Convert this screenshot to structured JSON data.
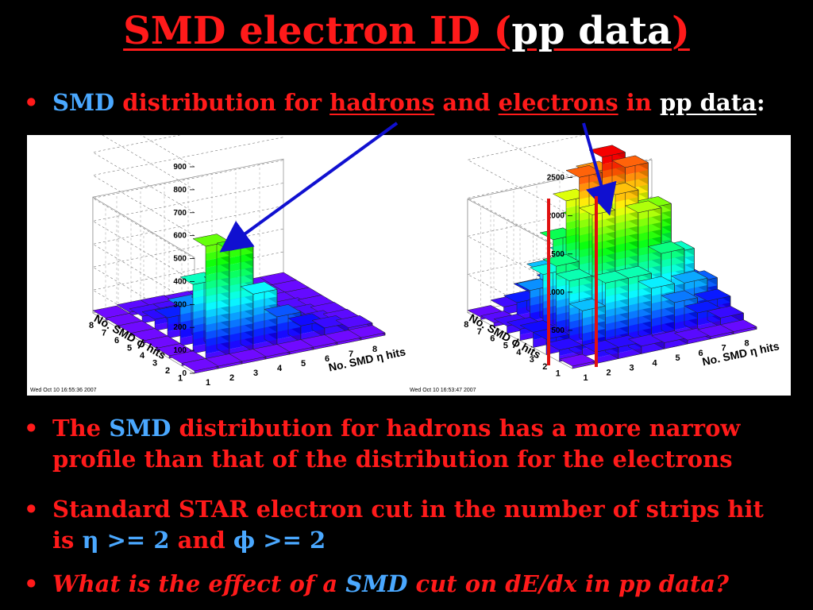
{
  "title": {
    "part1": "SMD electron ID (",
    "part2": "pp data",
    "part3": ")"
  },
  "bullet1": {
    "w1": "SMD",
    "w2": " distribution for ",
    "w3": "hadrons",
    "w4": " and ",
    "w5": "electrons",
    "w6": " in ",
    "w7": "pp data",
    "w8": ":"
  },
  "bullet2": {
    "line1_a": "The ",
    "line1_b": "SMD",
    "line1_c": " distribution for hadrons has a more narrow",
    "line2": "profile than that of the distribution for the electrons"
  },
  "bullet3": {
    "line1": "Standard STAR electron cut in the number of strips hit",
    "line2_a": "is ",
    "line2_b": "η >= 2",
    "line2_c": " and ",
    "line2_d": "ϕ >= 2"
  },
  "bullet4": {
    "a": "What is the effect of a ",
    "b": "SMD",
    "c": " cut on dE/dx in pp data?"
  },
  "bullet_glyph": "•",
  "colors": {
    "title_red": "#ff1a1a",
    "smd_blue": "#4aa8ff",
    "arrow_blue": "#1010d0",
    "cut_line_red": "#e01010"
  },
  "chart_data": [
    {
      "type": "lego3d",
      "name": "hadrons",
      "timestamp": "Wed Oct 10 16:55:36 2007",
      "xlabel": "No. SMD η hits",
      "ylabel": "No. SMD ϕ hits",
      "x_ticks": [
        "1",
        "2",
        "3",
        "4",
        "5",
        "6",
        "7",
        "8"
      ],
      "y_ticks": [
        "1",
        "2",
        "3",
        "4",
        "5",
        "6",
        "7",
        "8"
      ],
      "z_ticks": [
        "0",
        "100",
        "200",
        "300",
        "400",
        "500",
        "600",
        "700",
        "800",
        "900"
      ],
      "zlim": [
        0,
        900
      ],
      "values": [
        [
          0,
          0,
          0,
          0,
          0,
          0,
          0,
          0
        ],
        [
          0,
          500,
          460,
          250,
          130,
          70,
          40,
          20
        ],
        [
          0,
          300,
          280,
          160,
          90,
          50,
          30,
          15
        ],
        [
          0,
          170,
          160,
          110,
          70,
          40,
          25,
          12
        ],
        [
          0,
          90,
          90,
          70,
          50,
          30,
          20,
          10
        ],
        [
          0,
          50,
          50,
          40,
          30,
          20,
          12,
          8
        ],
        [
          0,
          30,
          30,
          25,
          20,
          12,
          8,
          5
        ],
        [
          0,
          15,
          15,
          12,
          10,
          8,
          5,
          3
        ]
      ]
    },
    {
      "type": "lego3d",
      "name": "electrons",
      "timestamp": "Wed Oct 10 16:53:47 2007",
      "xlabel": "No. SMD η hits",
      "ylabel": "No. SMD ϕ hits",
      "x_ticks": [
        "1",
        "2",
        "3",
        "4",
        "5",
        "6",
        "7",
        "8"
      ],
      "y_ticks": [
        "1",
        "2",
        "3",
        "4",
        "5",
        "6",
        "7",
        "8"
      ],
      "z_ticks": [
        "500",
        "1000",
        "1500",
        "2000",
        "2500"
      ],
      "zlim": [
        0,
        2600
      ],
      "values": [
        [
          0,
          150,
          150,
          100,
          80,
          50,
          30,
          20
        ],
        [
          150,
          600,
          900,
          900,
          700,
          450,
          250,
          120
        ],
        [
          200,
          900,
          1700,
          1900,
          1600,
          1000,
          550,
          250
        ],
        [
          200,
          1000,
          2100,
          2300,
          2100,
          1500,
          850,
          400
        ],
        [
          150,
          800,
          1700,
          2000,
          1800,
          1300,
          750,
          350
        ],
        [
          100,
          500,
          1100,
          1300,
          1200,
          900,
          500,
          250
        ],
        [
          50,
          250,
          600,
          750,
          700,
          500,
          300,
          150
        ],
        [
          20,
          100,
          250,
          300,
          300,
          200,
          120,
          60
        ]
      ]
    }
  ]
}
